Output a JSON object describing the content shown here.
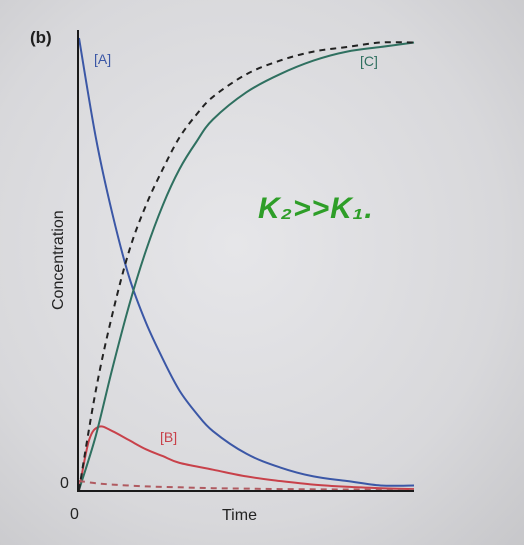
{
  "chart_data": {
    "type": "line",
    "panel_label": "(b)",
    "title": "",
    "xlabel": "Time",
    "ylabel": "Concentration",
    "x_ticks": [
      "0"
    ],
    "y_ticks": [
      "0"
    ],
    "xlim": [
      0,
      10
    ],
    "ylim": [
      0,
      1
    ],
    "grid": false,
    "annotation": "K₂>>K₁.",
    "series": [
      {
        "name": "[A]",
        "style": "solid",
        "color": "#3b57a6",
        "x": [
          0,
          0.5,
          1,
          1.5,
          2,
          2.5,
          3,
          3.5,
          4,
          5,
          6,
          7,
          8,
          9,
          10
        ],
        "y": [
          1.0,
          0.78,
          0.61,
          0.47,
          0.37,
          0.29,
          0.22,
          0.17,
          0.13,
          0.08,
          0.05,
          0.03,
          0.02,
          0.01,
          0.01
        ]
      },
      {
        "name": "[B]",
        "style": "solid",
        "color": "#c8414a",
        "x": [
          0,
          0.3,
          0.6,
          1,
          1.5,
          2,
          2.5,
          3,
          4,
          5,
          6,
          7,
          8,
          9,
          10
        ],
        "y": [
          0,
          0.11,
          0.14,
          0.13,
          0.11,
          0.09,
          0.075,
          0.06,
          0.045,
          0.03,
          0.02,
          0.012,
          0.007,
          0.004,
          0.002
        ]
      },
      {
        "name": "[C]",
        "style": "solid",
        "color": "#2f7060",
        "x": [
          0,
          0.5,
          1,
          1.5,
          2,
          2.5,
          3,
          3.5,
          4,
          5,
          6,
          7,
          8,
          9,
          10
        ],
        "y": [
          0,
          0.12,
          0.27,
          0.41,
          0.53,
          0.63,
          0.71,
          0.77,
          0.82,
          0.88,
          0.92,
          0.95,
          0.97,
          0.98,
          0.99
        ]
      },
      {
        "name": "",
        "style": "dashed",
        "color": "#222222",
        "x": [
          0,
          0.5,
          1,
          1.5,
          2,
          2.5,
          3,
          3.5,
          4,
          5,
          6,
          7,
          8,
          9,
          10
        ],
        "y": [
          0,
          0.22,
          0.39,
          0.53,
          0.63,
          0.71,
          0.78,
          0.83,
          0.87,
          0.92,
          0.95,
          0.97,
          0.98,
          0.99,
          0.99
        ]
      },
      {
        "name": "",
        "style": "dashed",
        "color": "#b05a60",
        "x": [
          0,
          0.5,
          1,
          2,
          3,
          4,
          5,
          6,
          8,
          10
        ],
        "y": [
          0.02,
          0.015,
          0.012,
          0.008,
          0.006,
          0.004,
          0.003,
          0.002,
          0.001,
          0.0
        ]
      }
    ]
  }
}
